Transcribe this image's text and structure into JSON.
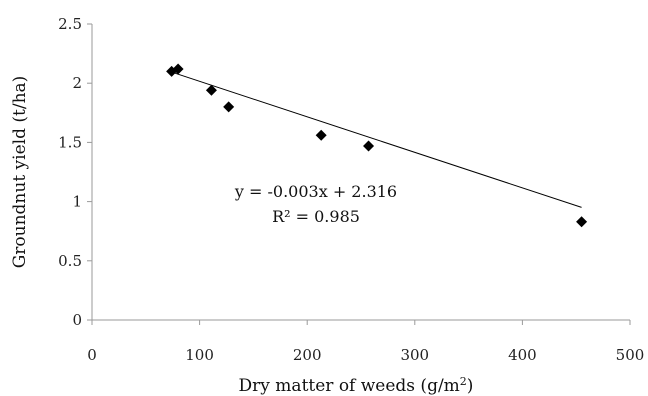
{
  "chart_data": {
    "type": "scatter",
    "title": "",
    "xlabel": "Dry matter of weeds (g/m",
    "xlabel_sup": "2",
    "xlabel_end": ")",
    "ylabel": "Groundnut yield (t/ha)",
    "xlim": [
      0,
      500
    ],
    "ylim": [
      0,
      2.5
    ],
    "x_ticks": [
      "0",
      "100",
      "200",
      "300",
      "400",
      "500"
    ],
    "y_ticks": [
      "0",
      "0.5",
      "1",
      "1.5",
      "2",
      "2.5"
    ],
    "grid": false,
    "legend": "none",
    "marker": "diamond",
    "marker_color": "#000000",
    "points": [
      {
        "x": 74,
        "y": 2.1
      },
      {
        "x": 80,
        "y": 2.12
      },
      {
        "x": 111,
        "y": 1.94
      },
      {
        "x": 127,
        "y": 1.8
      },
      {
        "x": 213,
        "y": 1.56
      },
      {
        "x": 257,
        "y": 1.47
      },
      {
        "x": 455,
        "y": 0.83
      }
    ],
    "trendline": {
      "slope": -0.003,
      "intercept": 2.316,
      "x_range": [
        74,
        455
      ],
      "equation": "y = -0.003x + 2.316",
      "r_squared": "R² = 0.985"
    }
  }
}
